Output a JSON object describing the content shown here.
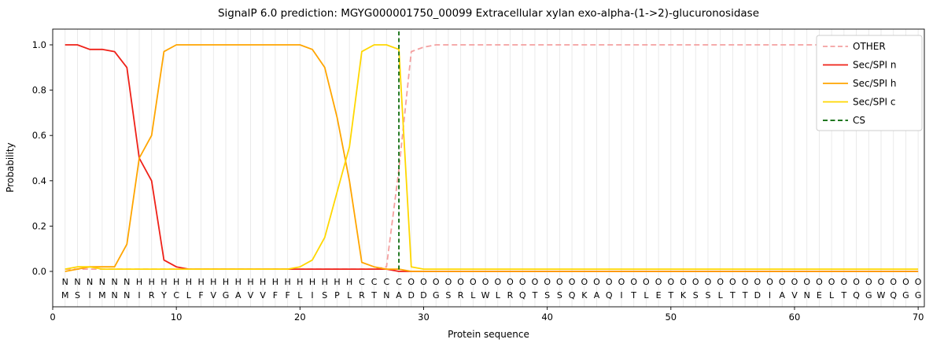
{
  "title": "SignalP 6.0 prediction: MGYG000001750_00099 Extracellular xylan exo-alpha-(1->2)-glucuronosidase",
  "chart_data": {
    "type": "line",
    "title": "SignalP 6.0 prediction: MGYG000001750_00099 Extracellular xylan exo-alpha-(1->2)-glucuronosidase",
    "xlabel": "Protein sequence",
    "ylabel": "Probability",
    "xlim": [
      0,
      70.5
    ],
    "ylim": [
      0,
      1.0
    ],
    "xticks": [
      0,
      10,
      20,
      30,
      40,
      50,
      60,
      70
    ],
    "yticks": [
      0.0,
      0.2,
      0.4,
      0.6,
      0.8,
      1.0
    ],
    "grid": "vertical-per-residue",
    "legend_position": "upper-right",
    "cs_position": 28,
    "sequence": "MSIMNNIRYCLFVGAVVFFLISPLRTNADDGSRLWLRQTSSQKAQITLETKSSLTTDIAVNELTQGWQGG",
    "regions": "NNNNNNHHHHHHHHHHHHHHHHHHCCCCOOOOOOOOOOOOOOOOOOOOOOOOOOOOOOOOOOOOOOOOOO",
    "region_colors": {
      "N": "#ef2118",
      "H": "#ffa500",
      "C": "#ffd700",
      "O": "#8c8c8c"
    },
    "amino_color": "#1a1a1a",
    "series": [
      {
        "name": "OTHER",
        "color": "#f4a0a0",
        "dash": true,
        "values": [
          0.01,
          0.01,
          0.01,
          0.01,
          0.01,
          0.01,
          0.01,
          0.01,
          0.01,
          0.01,
          0.01,
          0.01,
          0.01,
          0.01,
          0.01,
          0.01,
          0.01,
          0.01,
          0.01,
          0.01,
          0.01,
          0.01,
          0.01,
          0.01,
          0.01,
          0.01,
          0.02,
          0.45,
          0.97,
          0.99,
          1.0,
          1.0,
          1.0,
          1.0,
          1.0,
          1.0,
          1.0,
          1.0,
          1.0,
          1.0,
          1.0,
          1.0,
          1.0,
          1.0,
          1.0,
          1.0,
          1.0,
          1.0,
          1.0,
          1.0,
          1.0,
          1.0,
          1.0,
          1.0,
          1.0,
          1.0,
          1.0,
          1.0,
          1.0,
          1.0,
          1.0,
          1.0,
          1.0,
          1.0,
          1.0,
          1.0,
          1.0,
          1.0,
          1.0,
          1.0
        ]
      },
      {
        "name": "Sec/SPI n",
        "color": "#ef2118",
        "dash": false,
        "values": [
          1.0,
          1.0,
          0.98,
          0.98,
          0.97,
          0.9,
          0.5,
          0.4,
          0.05,
          0.02,
          0.01,
          0.01,
          0.01,
          0.01,
          0.01,
          0.01,
          0.01,
          0.01,
          0.01,
          0.01,
          0.01,
          0.01,
          0.01,
          0.01,
          0.01,
          0.01,
          0.01,
          0.0,
          0.0,
          0.0,
          0.0,
          0.0,
          0.0,
          0.0,
          0.0,
          0.0,
          0.0,
          0.0,
          0.0,
          0.0,
          0.0,
          0.0,
          0.0,
          0.0,
          0.0,
          0.0,
          0.0,
          0.0,
          0.0,
          0.0,
          0.0,
          0.0,
          0.0,
          0.0,
          0.0,
          0.0,
          0.0,
          0.0,
          0.0,
          0.0,
          0.0,
          0.0,
          0.0,
          0.0,
          0.0,
          0.0,
          0.0,
          0.0,
          0.0,
          0.0
        ]
      },
      {
        "name": "Sec/SPI h",
        "color": "#ffa500",
        "dash": false,
        "values": [
          0.0,
          0.01,
          0.02,
          0.02,
          0.02,
          0.12,
          0.5,
          0.6,
          0.97,
          1.0,
          1.0,
          1.0,
          1.0,
          1.0,
          1.0,
          1.0,
          1.0,
          1.0,
          1.0,
          1.0,
          0.98,
          0.9,
          0.68,
          0.4,
          0.04,
          0.02,
          0.01,
          0.01,
          0.0,
          0.0,
          0.0,
          0.0,
          0.0,
          0.0,
          0.0,
          0.0,
          0.0,
          0.0,
          0.0,
          0.0,
          0.0,
          0.0,
          0.0,
          0.0,
          0.0,
          0.0,
          0.0,
          0.0,
          0.0,
          0.0,
          0.0,
          0.0,
          0.0,
          0.0,
          0.0,
          0.0,
          0.0,
          0.0,
          0.0,
          0.0,
          0.0,
          0.0,
          0.0,
          0.0,
          0.0,
          0.0,
          0.0,
          0.0,
          0.0,
          0.0
        ]
      },
      {
        "name": "Sec/SPI c",
        "color": "#ffd700",
        "dash": false,
        "values": [
          0.01,
          0.02,
          0.02,
          0.01,
          0.01,
          0.01,
          0.01,
          0.01,
          0.01,
          0.01,
          0.01,
          0.01,
          0.01,
          0.01,
          0.01,
          0.01,
          0.01,
          0.01,
          0.01,
          0.02,
          0.05,
          0.15,
          0.35,
          0.55,
          0.97,
          1.0,
          1.0,
          0.98,
          0.02,
          0.01,
          0.01,
          0.01,
          0.01,
          0.01,
          0.01,
          0.01,
          0.01,
          0.01,
          0.01,
          0.01,
          0.01,
          0.01,
          0.01,
          0.01,
          0.01,
          0.01,
          0.01,
          0.01,
          0.01,
          0.01,
          0.01,
          0.01,
          0.01,
          0.01,
          0.01,
          0.01,
          0.01,
          0.01,
          0.01,
          0.01,
          0.01,
          0.01,
          0.01,
          0.01,
          0.01,
          0.01,
          0.01,
          0.01,
          0.01,
          0.01
        ]
      }
    ],
    "legend": [
      {
        "label": "OTHER",
        "color": "#f4a0a0",
        "dash": true
      },
      {
        "label": "Sec/SPI n",
        "color": "#ef2118",
        "dash": false
      },
      {
        "label": "Sec/SPI h",
        "color": "#ffa500",
        "dash": false
      },
      {
        "label": "Sec/SPI c",
        "color": "#ffd700",
        "dash": false
      },
      {
        "label": "CS",
        "color": "#006400",
        "dash": true
      }
    ],
    "cs_color": "#006400"
  }
}
